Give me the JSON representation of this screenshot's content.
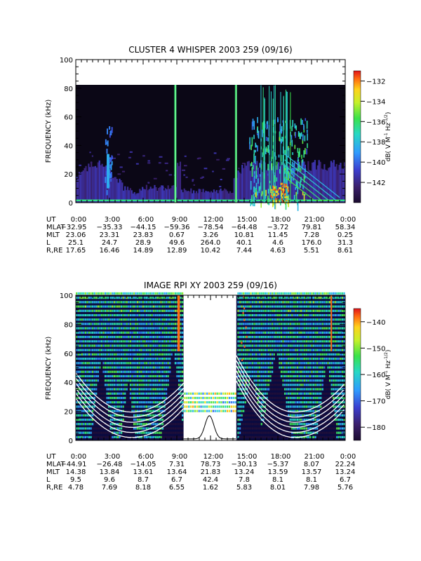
{
  "chart_data": [
    {
      "type": "heatmap",
      "title": "CLUSTER 4 WHISPER 2003 259 (09/16)",
      "ylabel": "FREQUENCY (kHz)",
      "ylim": [
        0,
        100
      ],
      "yticks": [
        0,
        20,
        40,
        60,
        80,
        100
      ],
      "data_max_frequency_khz": 80,
      "xticks": [
        "0:00",
        "3:00",
        "6:00",
        "9:00",
        "12:00",
        "15:00",
        "18:00",
        "21:00",
        "0:00"
      ],
      "colorbar": {
        "label": "dB( V M⁻¹ Hz⁻¹ᐟ²)",
        "label_parts": [
          "dB( V M",
          "-1",
          " Hz",
          "-1/2",
          ")"
        ],
        "range": [
          -144,
          -131
        ],
        "ticks": [
          -132,
          -134,
          -136,
          -138,
          -140,
          -142
        ],
        "colormap": "rainbow (purple-blue-green-yellow-red)"
      },
      "ephemeris": {
        "labels": [
          "UT",
          "MLAT",
          "MLT",
          "L",
          "R,RE"
        ],
        "UT": [
          "0:00",
          "3:00",
          "6:00",
          "9:00",
          "12:00",
          "15:00",
          "18:00",
          "21:00",
          "0:00"
        ],
        "MLAT": [
          "-32.95",
          "-35.33",
          "-44.15",
          "-59.36",
          "-78.54",
          "-64.48",
          "-3.72",
          "79.81",
          "58.34"
        ],
        "MLT": [
          "23.06",
          "23.31",
          "23.83",
          "0.67",
          "3.26",
          "10.81",
          "11.45",
          "7.28",
          "0.25"
        ],
        "L": [
          "25.1",
          "24.7",
          "28.9",
          "49.6",
          "264.0",
          "40.1",
          "4.6",
          "176.0",
          "31.3"
        ],
        "RRE": [
          "17.65",
          "16.46",
          "14.89",
          "12.89",
          "10.42",
          "7.44",
          "4.63",
          "5.51",
          "8.61"
        ]
      },
      "features": [
        {
          "kind": "vertical-burst",
          "ut_hours": 2.9,
          "color": "#3aa0ff"
        },
        {
          "kind": "vertical-burst",
          "ut_hours": 8.9,
          "color": "#7cff9a"
        },
        {
          "kind": "vertical-burst",
          "ut_hours": 14.3,
          "color": "#7cff9a"
        },
        {
          "kind": "intense-band",
          "ut_hours_start": 16.5,
          "ut_hours_end": 19.5
        }
      ]
    },
    {
      "type": "heatmap",
      "title": "IMAGE RPI XY 2003 259 (09/16)",
      "ylabel": "FREQUENCY (kHz)",
      "ylim": [
        0,
        100
      ],
      "yticks": [
        0,
        20,
        40,
        60,
        80,
        100
      ],
      "xticks": [
        "0:00",
        "3:00",
        "6:00",
        "9:00",
        "12:00",
        "15:00",
        "18:00",
        "21:00",
        "0:00"
      ],
      "data_gap_ut_hours": [
        9.6,
        14.3
      ],
      "colorbar": {
        "label": "dB( V M⁻¹ Hz⁻¹ᐟ²)",
        "label_parts": [
          "dB( V M",
          "-1",
          " Hz",
          "-1/2",
          ")"
        ],
        "range": [
          -185,
          -135
        ],
        "ticks": [
          -140,
          -150,
          -160,
          -170,
          -180
        ],
        "colormap": "rainbow (purple-blue-green-yellow-red)"
      },
      "ephemeris": {
        "labels": [
          "UT",
          "MLAT",
          "MLT",
          "L",
          "R,RE"
        ],
        "UT": [
          "0:00",
          "3:00",
          "6:00",
          "9:00",
          "12:00",
          "15:00",
          "18:00",
          "21:00",
          "0:00"
        ],
        "MLAT": [
          "-44.91",
          "-26.48",
          "-14.05",
          "7.31",
          "78.73",
          "-30.13",
          "-5.37",
          "8.07",
          "22.24"
        ],
        "MLT": [
          "14.38",
          "13.84",
          "13.61",
          "13.64",
          "21.83",
          "13.24",
          "13.59",
          "13.57",
          "13.24"
        ],
        "L": [
          "9.5",
          "9.6",
          "8.7",
          "6.7",
          "42.4",
          "7.8",
          "8.1",
          "8.1",
          "6.7"
        ],
        "RRE": [
          "4.78",
          "7.69",
          "8.18",
          "6.55",
          "1.62",
          "5.83",
          "8.01",
          "7.98",
          "5.76"
        ]
      }
    }
  ]
}
